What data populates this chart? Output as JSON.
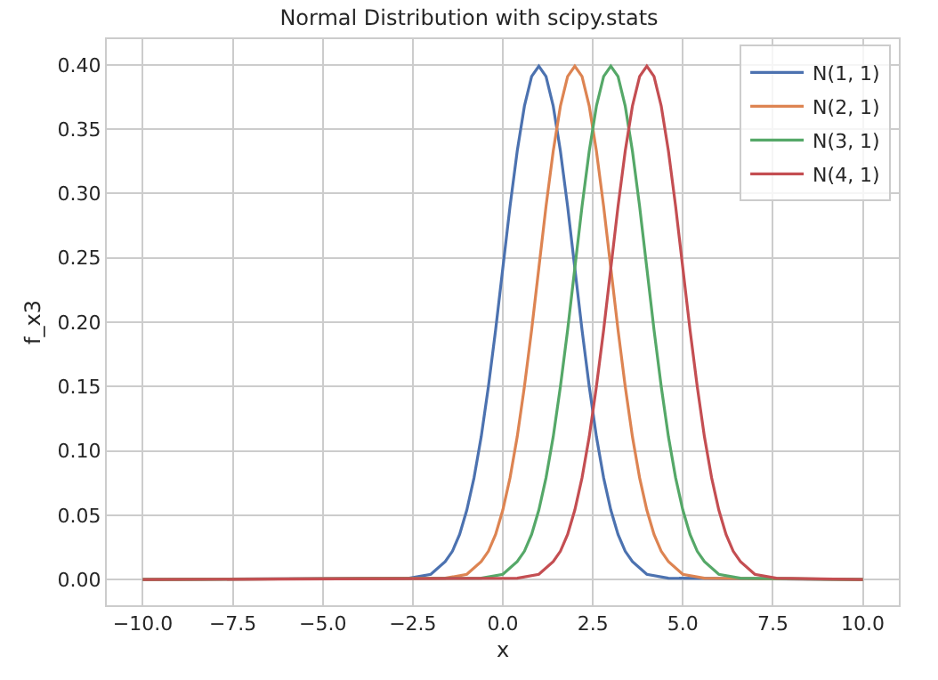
{
  "chart_data": {
    "type": "line",
    "title": "Normal Distribution with scipy.stats",
    "xlabel": "x",
    "ylabel": "f_x3",
    "xlim": [
      -11,
      11
    ],
    "ylim": [
      -0.02,
      0.42
    ],
    "xticks": [
      {
        "value": -10,
        "label": "−10.0"
      },
      {
        "value": -7.5,
        "label": "−7.5"
      },
      {
        "value": -5,
        "label": "−5.0"
      },
      {
        "value": -2.5,
        "label": "−2.5"
      },
      {
        "value": 0,
        "label": "0.0"
      },
      {
        "value": 2.5,
        "label": "2.5"
      },
      {
        "value": 5,
        "label": "5.0"
      },
      {
        "value": 7.5,
        "label": "7.5"
      },
      {
        "value": 10,
        "label": "10.0"
      }
    ],
    "yticks": [
      {
        "value": 0,
        "label": "0.00"
      },
      {
        "value": 0.05,
        "label": "0.05"
      },
      {
        "value": 0.1,
        "label": "0.10"
      },
      {
        "value": 0.15,
        "label": "0.15"
      },
      {
        "value": 0.2,
        "label": "0.20"
      },
      {
        "value": 0.25,
        "label": "0.25"
      },
      {
        "value": 0.3,
        "label": "0.30"
      },
      {
        "value": 0.35,
        "label": "0.35"
      },
      {
        "value": 0.4,
        "label": "0.40"
      }
    ],
    "grid": true,
    "legend": "top right",
    "marker": "none",
    "line_style": "solid",
    "series": [
      {
        "name": "N(1, 1)",
        "color": "#4c72b0",
        "x": [
          -10,
          -2.6,
          -2,
          -1.6,
          -1.4,
          -1.2,
          -1,
          -0.8,
          -0.6,
          -0.4,
          -0.2,
          0,
          0.2,
          0.4,
          0.6,
          0.8,
          1,
          1.2,
          1.4,
          1.6,
          1.8,
          2,
          2.2,
          2.4,
          2.6,
          2.8,
          3,
          3.2,
          3.4,
          3.6,
          4,
          4.6,
          10
        ],
        "values": [
          0,
          0.001,
          0.004,
          0.014,
          0.022,
          0.035,
          0.054,
          0.079,
          0.111,
          0.15,
          0.194,
          0.242,
          0.29,
          0.333,
          0.368,
          0.391,
          0.399,
          0.391,
          0.368,
          0.333,
          0.29,
          0.242,
          0.194,
          0.15,
          0.111,
          0.079,
          0.054,
          0.035,
          0.022,
          0.014,
          0.004,
          0.001,
          0
        ]
      },
      {
        "name": "N(2, 1)",
        "color": "#dd8452",
        "x": [
          -10,
          -1.6,
          -1,
          -0.6,
          -0.4,
          -0.2,
          0,
          0.2,
          0.4,
          0.6,
          0.8,
          1,
          1.2,
          1.4,
          1.6,
          1.8,
          2,
          2.2,
          2.4,
          2.6,
          2.8,
          3,
          3.2,
          3.4,
          3.6,
          3.8,
          4,
          4.2,
          4.4,
          4.6,
          5,
          5.6,
          10
        ],
        "values": [
          0,
          0.001,
          0.004,
          0.014,
          0.022,
          0.035,
          0.054,
          0.079,
          0.111,
          0.15,
          0.194,
          0.242,
          0.29,
          0.333,
          0.368,
          0.391,
          0.399,
          0.391,
          0.368,
          0.333,
          0.29,
          0.242,
          0.194,
          0.15,
          0.111,
          0.079,
          0.054,
          0.035,
          0.022,
          0.014,
          0.004,
          0.001,
          0
        ]
      },
      {
        "name": "N(3, 1)",
        "color": "#55a868",
        "x": [
          -10,
          -0.6,
          0,
          0.4,
          0.6,
          0.8,
          1,
          1.2,
          1.4,
          1.6,
          1.8,
          2,
          2.2,
          2.4,
          2.6,
          2.8,
          3,
          3.2,
          3.4,
          3.6,
          3.8,
          4,
          4.2,
          4.4,
          4.6,
          4.8,
          5,
          5.2,
          5.4,
          5.6,
          6,
          6.6,
          10
        ],
        "values": [
          0,
          0.001,
          0.004,
          0.014,
          0.022,
          0.035,
          0.054,
          0.079,
          0.111,
          0.15,
          0.194,
          0.242,
          0.29,
          0.333,
          0.368,
          0.391,
          0.399,
          0.391,
          0.368,
          0.333,
          0.29,
          0.242,
          0.194,
          0.15,
          0.111,
          0.079,
          0.054,
          0.035,
          0.022,
          0.014,
          0.004,
          0.001,
          0
        ]
      },
      {
        "name": "N(4, 1)",
        "color": "#c44e52",
        "x": [
          -10,
          0.4,
          1,
          1.4,
          1.6,
          1.8,
          2,
          2.2,
          2.4,
          2.6,
          2.8,
          3,
          3.2,
          3.4,
          3.6,
          3.8,
          4,
          4.2,
          4.4,
          4.6,
          4.8,
          5,
          5.2,
          5.4,
          5.6,
          5.8,
          6,
          6.2,
          6.4,
          6.6,
          7,
          7.6,
          10
        ],
        "values": [
          0,
          0.001,
          0.004,
          0.014,
          0.022,
          0.035,
          0.054,
          0.079,
          0.111,
          0.15,
          0.194,
          0.242,
          0.29,
          0.333,
          0.368,
          0.391,
          0.399,
          0.391,
          0.368,
          0.333,
          0.29,
          0.242,
          0.194,
          0.15,
          0.111,
          0.079,
          0.054,
          0.035,
          0.022,
          0.014,
          0.004,
          0.001,
          0
        ]
      }
    ]
  }
}
